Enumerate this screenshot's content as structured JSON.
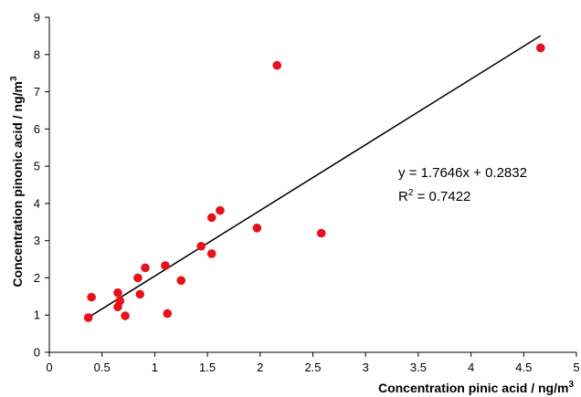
{
  "chart_data": {
    "type": "scatter",
    "xlabel": {
      "text": "Concentration pinic acid / ng/m",
      "superscript": "3"
    },
    "ylabel": {
      "text": "Concentration pinonic acid / ng/m",
      "superscript": "3"
    },
    "xlim": [
      0,
      5
    ],
    "ylim": [
      0,
      9
    ],
    "x_ticks": [
      0,
      0.5,
      1,
      1.5,
      2,
      2.5,
      3,
      3.5,
      4,
      4.5,
      5
    ],
    "x_tick_labels": [
      "0",
      "0.5",
      "1",
      "1.5",
      "2",
      "2.5",
      "3",
      "3.5",
      "4",
      "4.5",
      "5"
    ],
    "y_ticks": [
      0,
      1,
      2,
      3,
      4,
      5,
      6,
      7,
      8,
      9
    ],
    "y_tick_labels": [
      "0",
      "1",
      "2",
      "3",
      "4",
      "5",
      "6",
      "7",
      "8",
      "9"
    ],
    "grid": false,
    "series": [
      {
        "points": [
          {
            "x": 0.37,
            "y": 0.93
          },
          {
            "x": 0.4,
            "y": 1.48
          },
          {
            "x": 0.65,
            "y": 1.6
          },
          {
            "x": 0.65,
            "y": 1.22
          },
          {
            "x": 0.67,
            "y": 1.38
          },
          {
            "x": 0.72,
            "y": 0.98
          },
          {
            "x": 0.84,
            "y": 2.0
          },
          {
            "x": 0.86,
            "y": 1.56
          },
          {
            "x": 0.91,
            "y": 2.27
          },
          {
            "x": 1.1,
            "y": 2.33
          },
          {
            "x": 1.12,
            "y": 1.04
          },
          {
            "x": 1.25,
            "y": 1.93
          },
          {
            "x": 1.44,
            "y": 2.85
          },
          {
            "x": 1.54,
            "y": 3.62
          },
          {
            "x": 1.54,
            "y": 2.65
          },
          {
            "x": 1.62,
            "y": 3.81
          },
          {
            "x": 1.97,
            "y": 3.34
          },
          {
            "x": 2.16,
            "y": 7.71
          },
          {
            "x": 2.58,
            "y": 3.2
          },
          {
            "x": 4.66,
            "y": 8.18
          }
        ]
      }
    ],
    "trendline": {
      "slope": 1.7646,
      "intercept": 0.2832,
      "x_range": [
        0.37,
        4.66
      ]
    },
    "annotations": {
      "equation": "y = 1.7646x + 0.2832",
      "r2_prefix": "R",
      "r2_superscript": "2",
      "r2_suffix": " = 0.7422"
    },
    "colors": {
      "marker": "#e8111a",
      "trendline": "#000000",
      "axis": "#000000"
    }
  }
}
